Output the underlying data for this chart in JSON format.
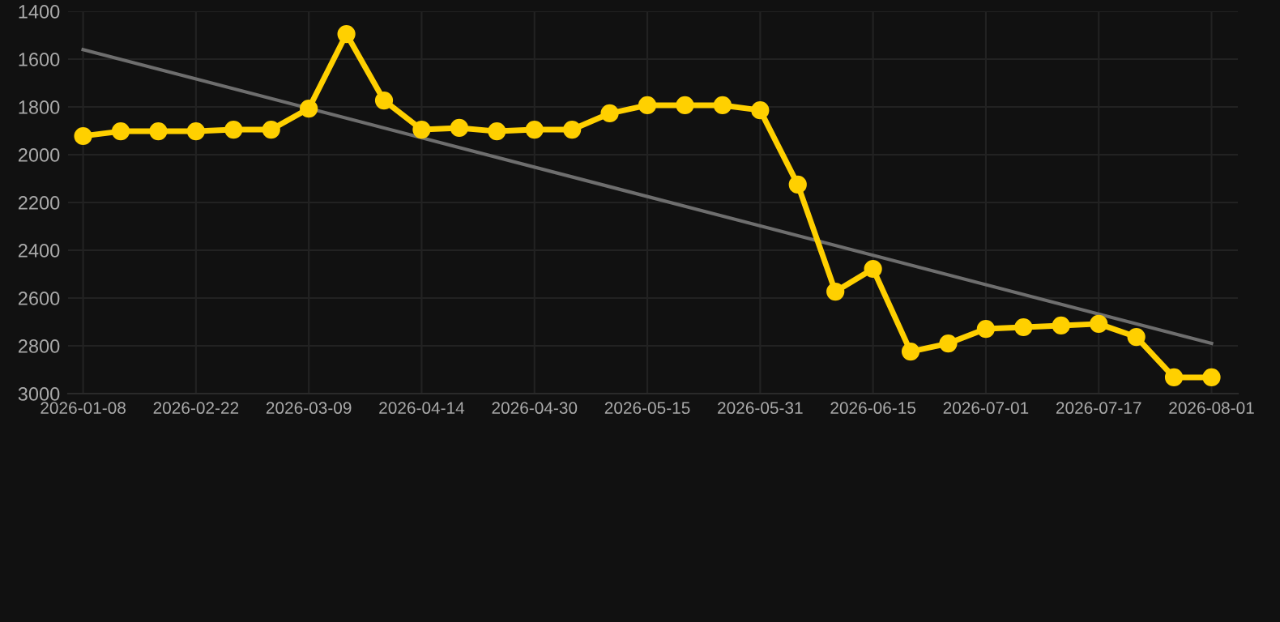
{
  "chart_data": {
    "type": "line",
    "categories": [
      "2026-01-08",
      null,
      null,
      "2026-02-22",
      null,
      null,
      "2026-03-09",
      null,
      null,
      "2026-04-14",
      null,
      null,
      "2026-04-30",
      null,
      null,
      "2026-05-15",
      null,
      null,
      "2026-05-31",
      null,
      null,
      "2026-06-15",
      null,
      null,
      "2026-07-01",
      null,
      null,
      "2026-07-17",
      null,
      null,
      "2026-08-01"
    ],
    "series": [
      {
        "color": "#ffd000",
        "marker": "circle",
        "values": [
          1922,
          1902,
          1902,
          1902,
          1895,
          1895,
          1807,
          1495,
          1773,
          1895,
          1888,
          1902,
          1895,
          1895,
          1827,
          1793,
          1793,
          1793,
          1814,
          2125,
          2573,
          2478,
          2824,
          2790,
          2729,
          2722,
          2715,
          2708,
          2763,
          2932,
          2932
        ]
      },
      {
        "color": "#6e6e6e",
        "marker": "none",
        "values": [
          1560,
          null,
          null,
          null,
          null,
          null,
          null,
          null,
          null,
          null,
          null,
          null,
          null,
          null,
          null,
          null,
          null,
          null,
          null,
          null,
          null,
          null,
          null,
          null,
          null,
          null,
          null,
          null,
          null,
          null,
          2790
        ]
      }
    ],
    "ylim": [
      3000,
      1400
    ],
    "yticks": [
      1400,
      1600,
      1800,
      2000,
      2200,
      2400,
      2600,
      2800,
      3000
    ],
    "grid": true
  }
}
